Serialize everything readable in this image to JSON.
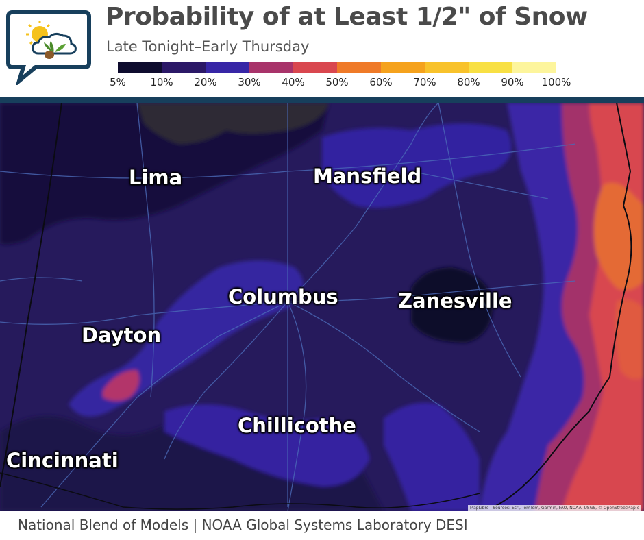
{
  "header": {
    "title": "Probability of at Least 1/2\" of Snow",
    "subtitle": "Late Tonight–Early Thursday"
  },
  "legend": {
    "colors": [
      "#0e0c2e",
      "#2b1867",
      "#3726a6",
      "#a8336a",
      "#d9474f",
      "#ef7a28",
      "#f5a21d",
      "#f8c22b",
      "#f8e044",
      "#fdf59c"
    ],
    "labels": [
      "5%",
      "10%",
      "20%",
      "30%",
      "40%",
      "50%",
      "60%",
      "70%",
      "80%",
      "90%",
      "100%"
    ]
  },
  "map": {
    "cities": [
      {
        "name": "Lima"
      },
      {
        "name": "Mansfield"
      },
      {
        "name": "Columbus"
      },
      {
        "name": "Zanesville"
      },
      {
        "name": "Dayton"
      },
      {
        "name": "Chillicothe"
      },
      {
        "name": "Cincinnati"
      }
    ],
    "attribution": "MapLibre | Sources: Esri, TomTom, Garmin, FAO, NOAA, USGS, © OpenStreetMap c"
  },
  "footer": {
    "text": "National Blend of Models | NOAA Global Systems Laboratory DESI"
  }
}
